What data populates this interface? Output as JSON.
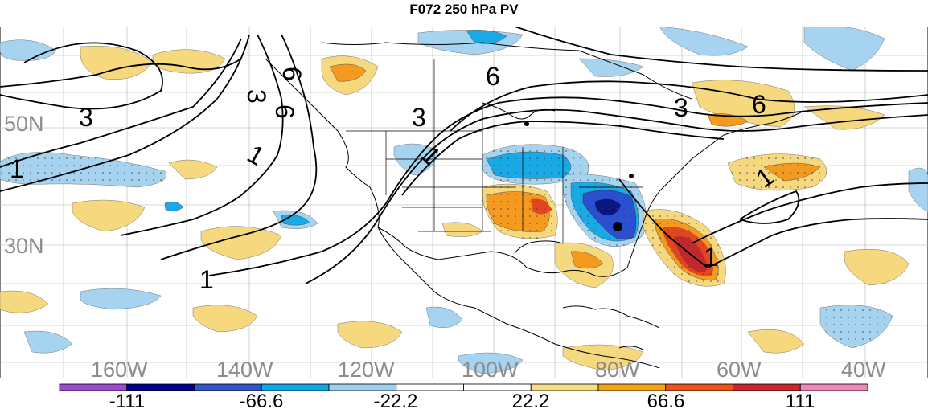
{
  "title": "F072 250 hPa PV",
  "lat_labels": [
    "50N",
    "30N"
  ],
  "lon_labels": [
    "160W",
    "140W",
    "120W",
    "100W",
    "80W",
    "60W",
    "40W"
  ],
  "contour_labels": [
    "1",
    "1",
    "1",
    "1",
    "3",
    "3",
    "3",
    "3",
    "6",
    "6",
    "6",
    "6",
    "1",
    "1"
  ],
  "colorbar": {
    "ticks": [
      "-111",
      "-66.6",
      "-22.2",
      "22.2",
      "66.6",
      "111"
    ],
    "colors": [
      "#9b4ad1",
      "#00008b",
      "#3355cc",
      "#12a8e8",
      "#9fd0ef",
      "#ffffff",
      "#ffffff",
      "#f7de86",
      "#f5a417",
      "#e8541d",
      "#c9282f",
      "#f088bc"
    ]
  },
  "colors": {
    "positive_light": "#f6d97e",
    "positive_mid": "#f39a1f",
    "positive_strong": "#e2461f",
    "positive_max": "#c1272d",
    "negative_light": "#9fd0ef",
    "negative_mid": "#12a8e8",
    "negative_strong": "#2a4fd0",
    "negative_max": "#0a1580",
    "label_gray": "#8c8c8c"
  }
}
